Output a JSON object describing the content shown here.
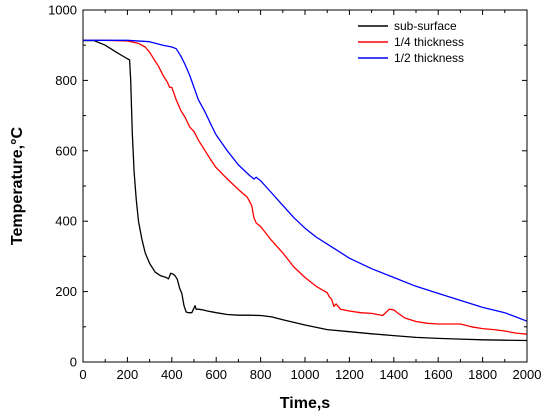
{
  "chart_data": {
    "type": "line",
    "xlabel": "Time,s",
    "ylabel": "Temperature,°C",
    "xlim": [
      0,
      2000
    ],
    "ylim": [
      0,
      1000
    ],
    "xticks": [
      0,
      200,
      400,
      600,
      800,
      1000,
      1200,
      1400,
      1600,
      1800,
      2000
    ],
    "yticks": [
      0,
      200,
      400,
      600,
      800,
      1000
    ],
    "grid": false,
    "legend_position": "top-right",
    "series": [
      {
        "name": "sub-surface",
        "color": "#000000",
        "x": [
          0,
          50,
          100,
          150,
          190,
          210,
          215,
          222,
          230,
          240,
          250,
          265,
          280,
          300,
          325,
          350,
          375,
          385,
          395,
          405,
          415,
          425,
          435,
          445,
          455,
          465,
          475,
          490,
          505,
          510,
          520,
          540,
          560,
          600,
          650,
          700,
          750,
          800,
          850,
          900,
          1000,
          1100,
          1200,
          1300,
          1400,
          1500,
          1600,
          1700,
          1800,
          1900,
          2000
        ],
        "y": [
          913,
          913,
          900,
          880,
          865,
          858,
          800,
          650,
          540,
          460,
          400,
          350,
          310,
          280,
          255,
          245,
          240,
          236,
          252,
          250,
          245,
          235,
          210,
          195,
          160,
          142,
          140,
          140,
          160,
          150,
          150,
          148,
          145,
          140,
          135,
          133,
          133,
          132,
          128,
          120,
          105,
          92,
          86,
          80,
          75,
          70,
          67,
          65,
          63,
          62,
          61
        ]
      },
      {
        "name": "1/4 thickness",
        "color": "#ff0000",
        "x": [
          0,
          100,
          200,
          250,
          280,
          300,
          320,
          340,
          360,
          380,
          390,
          400,
          420,
          440,
          460,
          480,
          500,
          520,
          540,
          560,
          580,
          600,
          650,
          700,
          740,
          760,
          770,
          780,
          800,
          850,
          900,
          950,
          1000,
          1050,
          1100,
          1110,
          1120,
          1130,
          1140,
          1160,
          1200,
          1250,
          1300,
          1350,
          1380,
          1400,
          1420,
          1450,
          1500,
          1550,
          1600,
          1700,
          1750,
          1800,
          1850,
          1900,
          1950,
          2000
        ],
        "y": [
          914,
          914,
          912,
          905,
          895,
          880,
          860,
          840,
          815,
          795,
          780,
          780,
          745,
          715,
          695,
          668,
          655,
          630,
          610,
          590,
          570,
          552,
          520,
          490,
          468,
          445,
          410,
          395,
          385,
          345,
          310,
          270,
          240,
          215,
          197,
          185,
          178,
          158,
          165,
          150,
          145,
          140,
          138,
          132,
          150,
          148,
          138,
          125,
          115,
          110,
          108,
          108,
          100,
          95,
          92,
          88,
          82,
          79
        ]
      },
      {
        "name": "1/2 thickness",
        "color": "#0000ff",
        "x": [
          0,
          100,
          200,
          300,
          360,
          400,
          420,
          440,
          460,
          480,
          500,
          520,
          550,
          580,
          600,
          650,
          700,
          750,
          770,
          780,
          800,
          850,
          900,
          950,
          1000,
          1050,
          1100,
          1150,
          1200,
          1300,
          1400,
          1500,
          1600,
          1700,
          1800,
          1900,
          1950,
          2000
        ],
        "y": [
          914,
          914,
          914,
          910,
          900,
          895,
          890,
          870,
          845,
          815,
          780,
          745,
          710,
          670,
          645,
          600,
          560,
          530,
          520,
          525,
          515,
          480,
          445,
          410,
          380,
          355,
          335,
          315,
          295,
          265,
          240,
          215,
          195,
          175,
          155,
          140,
          128,
          116
        ]
      }
    ]
  }
}
